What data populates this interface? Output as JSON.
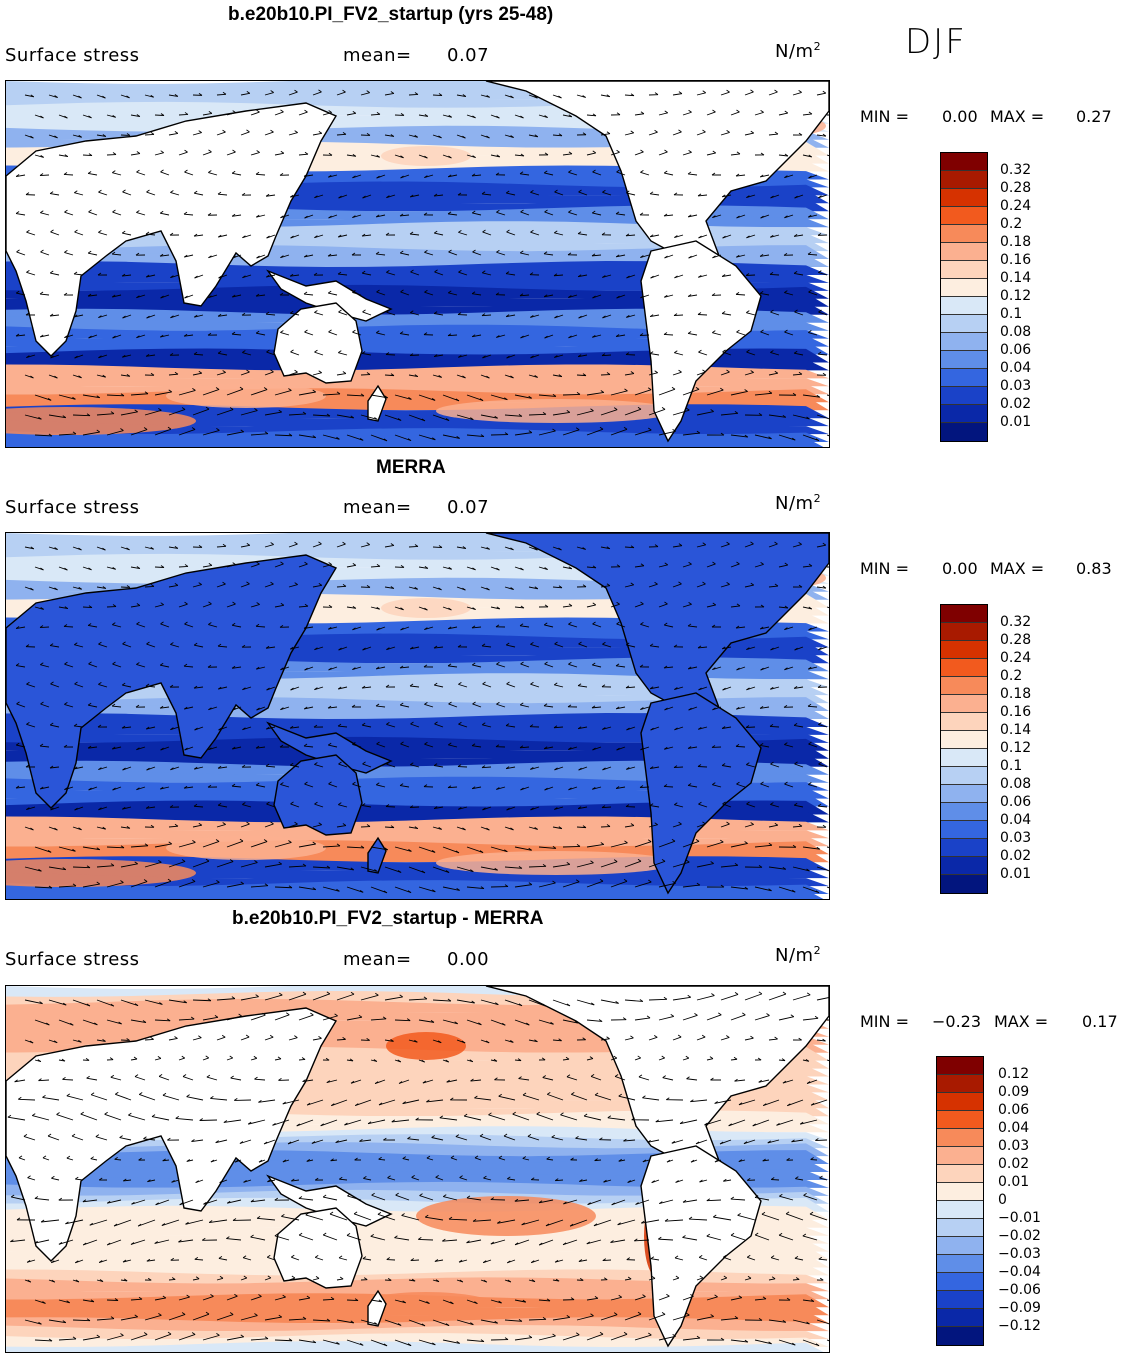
{
  "season": "DJF",
  "panels": [
    {
      "title": "b.e20b10.PI_FV2_startup (yrs 25-48)",
      "variable": "Surface stress",
      "mean_label": "mean=",
      "mean_value": "0.07",
      "units": "N/m",
      "units_sup": "2",
      "min_label": "MIN =",
      "min_value": "0.00",
      "max_label": "MAX =",
      "max_value": "0.27",
      "colorbar_ticks": [
        "0.32",
        "0.28",
        "0.24",
        "0.2",
        "0.18",
        "0.16",
        "0.14",
        "0.12",
        "0.1",
        "0.08",
        "0.06",
        "0.04",
        "0.03",
        "0.02",
        "0.01"
      ]
    },
    {
      "title": "MERRA",
      "variable": "Surface stress",
      "mean_label": "mean=",
      "mean_value": "0.07",
      "units": "N/m",
      "units_sup": "2",
      "min_label": "MIN =",
      "min_value": "0.00",
      "max_label": "MAX =",
      "max_value": "0.83",
      "colorbar_ticks": [
        "0.32",
        "0.28",
        "0.24",
        "0.2",
        "0.18",
        "0.16",
        "0.14",
        "0.12",
        "0.1",
        "0.08",
        "0.06",
        "0.04",
        "0.03",
        "0.02",
        "0.01"
      ]
    },
    {
      "title": "b.e20b10.PI_FV2_startup - MERRA",
      "variable": "Surface stress",
      "mean_label": "mean=",
      "mean_value": "0.00",
      "units": "N/m",
      "units_sup": "2",
      "min_label": "MIN =",
      "min_value": "−0.23",
      "max_label": "MAX =",
      "max_value": "0.17",
      "colorbar_ticks": [
        "0.12",
        "0.09",
        "0.06",
        "0.04",
        "0.03",
        "0.02",
        "0.01",
        "0",
        "−0.01",
        "−0.02",
        "−0.03",
        "−0.04",
        "−0.06",
        "−0.09",
        "−0.12"
      ]
    }
  ],
  "colors": {
    "scale": [
      "#7f0000",
      "#a81a00",
      "#d63200",
      "#f25a1e",
      "#f78a5a",
      "#fbb090",
      "#fdd4bc",
      "#fdeee0",
      "#d9e8f7",
      "#b7d0f3",
      "#8fb2ef",
      "#5f8ee8",
      "#3466e0",
      "#1a42c8",
      "#0a28a8",
      "#02157e"
    ],
    "land": "#ffffff",
    "coast": "#000000"
  }
}
